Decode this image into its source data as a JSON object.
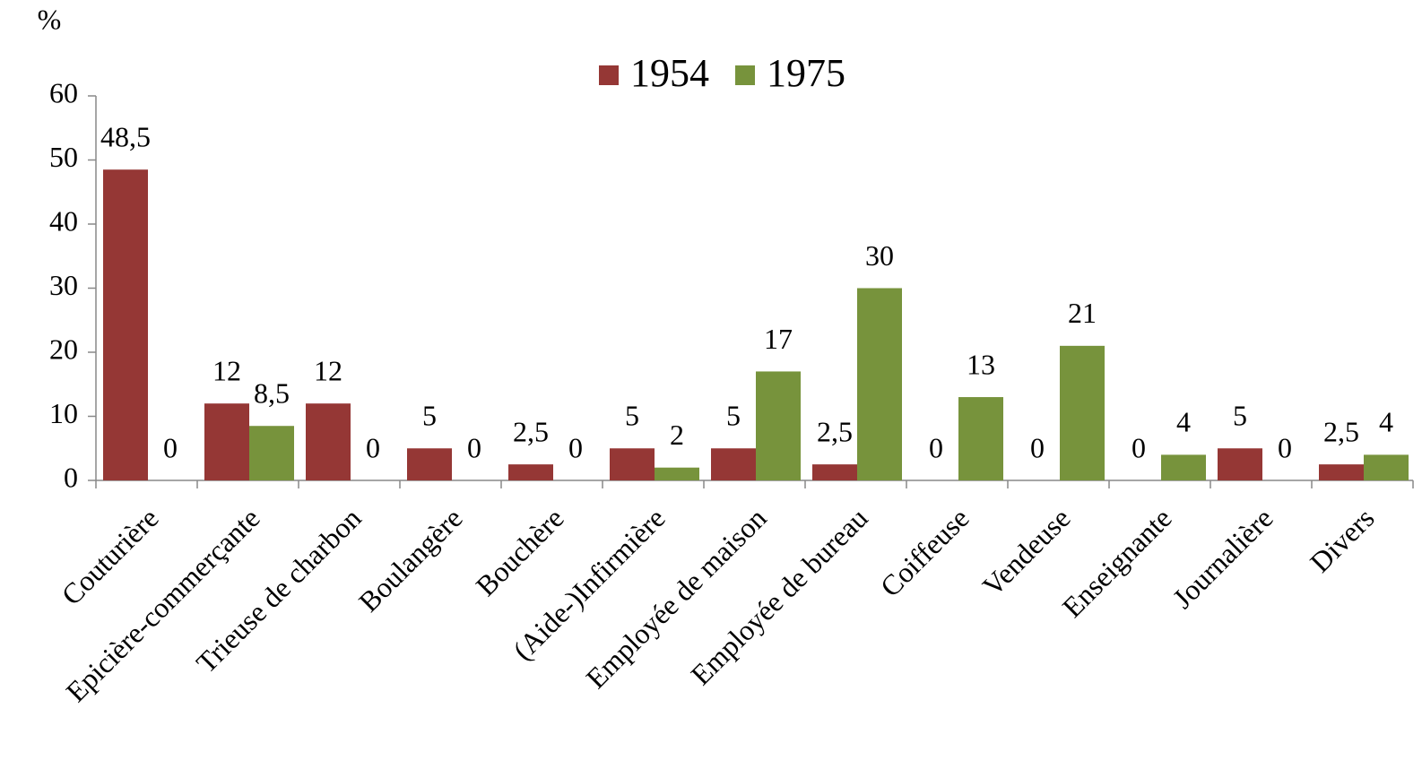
{
  "chart_data": {
    "type": "bar",
    "y_axis_label": "%",
    "categories": [
      "Couturière",
      "Epicière-commerçante",
      "Trieuse de charbon",
      "Boulangère",
      "Bouchère",
      "(Aide-)Infirmière",
      "Employée de maison",
      "Employée de bureau",
      "Coiffeuse",
      "Vendeuse",
      "Enseignante",
      "Journalière",
      "Divers"
    ],
    "series": [
      {
        "name": "1954",
        "color": "#953735",
        "values": [
          48.5,
          12,
          12,
          5,
          2.5,
          5,
          5,
          2.5,
          0,
          0,
          0,
          5,
          2.5
        ],
        "value_labels": [
          "48,5",
          "12",
          "12",
          "5",
          "2,5",
          "5",
          "5",
          "2,5",
          "0",
          "0",
          "0",
          "5",
          "2,5"
        ]
      },
      {
        "name": "1975",
        "color": "#77933c",
        "values": [
          0,
          8.5,
          0,
          0,
          0,
          2,
          17,
          30,
          13,
          21,
          4,
          0,
          4
        ],
        "value_labels": [
          "0",
          "8,5",
          "0",
          "0",
          "0",
          "2",
          "17",
          "30",
          "13",
          "21",
          "4",
          "0",
          "4"
        ]
      }
    ],
    "ylim": [
      0,
      60
    ],
    "yticks": [
      0,
      10,
      20,
      30,
      40,
      50,
      60
    ],
    "grid": false,
    "legend": "top"
  }
}
